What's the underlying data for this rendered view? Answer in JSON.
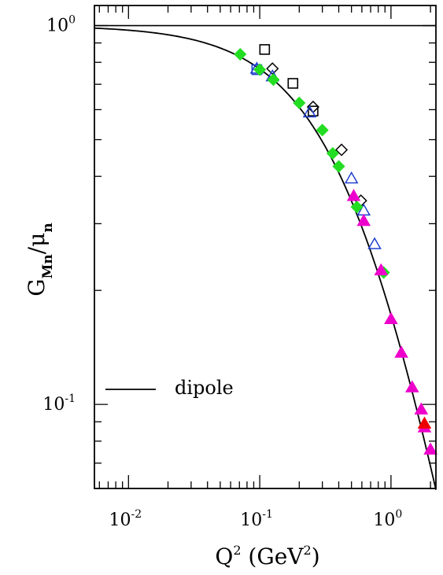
{
  "chart_data": {
    "type": "scatter",
    "title": "",
    "xlabel": "Q² (GeV²)",
    "ylabel": "G_Mn/μ_n",
    "x_scale": "log",
    "y_scale": "log",
    "xlim": [
      0.0055,
      2.2
    ],
    "ylim": [
      0.06,
      1.13
    ],
    "grid": false,
    "x_ticks": [
      {
        "base": "10",
        "exp": "-2",
        "value": 0.01
      },
      {
        "base": "10",
        "exp": "-1",
        "value": 0.1
      },
      {
        "base": "10",
        "exp": "0",
        "value": 1
      }
    ],
    "y_ticks": [
      {
        "base": "10",
        "exp": "-1",
        "value": 0.1
      },
      {
        "base": "10",
        "exp": "0",
        "value": 1
      }
    ],
    "reference_line": {
      "y": 1.0
    },
    "legend": {
      "placement": "lower-left",
      "entries": [
        {
          "label": "dipole",
          "style": "line"
        }
      ]
    },
    "dipole_curve": {
      "form": "1/(1+Q2/0.71)^2"
    },
    "series": [
      {
        "marker": "square-open",
        "color": "#000000",
        "points": [
          [
            0.109,
            0.865
          ],
          [
            0.179,
            0.704
          ],
          [
            0.255,
            0.595
          ]
        ]
      },
      {
        "marker": "diamond-open",
        "color": "#000000",
        "points": [
          [
            0.125,
            0.77
          ],
          [
            0.255,
            0.61
          ],
          [
            0.42,
            0.47
          ],
          [
            0.59,
            0.345
          ]
        ]
      },
      {
        "marker": "triangle-open",
        "color": "#2040d0",
        "points": [
          [
            0.095,
            0.77
          ],
          [
            0.125,
            0.735
          ],
          [
            0.24,
            0.59
          ],
          [
            0.5,
            0.395
          ],
          [
            0.62,
            0.325
          ],
          [
            0.75,
            0.265
          ]
        ]
      },
      {
        "marker": "square-open",
        "color": "#2040d0",
        "points": [
          [
            0.095,
            0.765
          ]
        ]
      },
      {
        "marker": "diamond-filled",
        "color": "#22dd22",
        "points": [
          [
            0.071,
            0.84
          ],
          [
            0.1,
            0.765
          ],
          [
            0.127,
            0.72
          ],
          [
            0.2,
            0.625
          ],
          [
            0.3,
            0.53
          ],
          [
            0.36,
            0.46
          ],
          [
            0.4,
            0.425
          ],
          [
            0.55,
            0.332
          ],
          [
            0.88,
            0.223
          ]
        ]
      },
      {
        "marker": "triangle-filled",
        "color": "#ee00cc",
        "points": [
          [
            0.52,
            0.355
          ],
          [
            0.62,
            0.305
          ],
          [
            0.84,
            0.226
          ],
          [
            1.0,
            0.168
          ],
          [
            1.2,
            0.137
          ],
          [
            1.45,
            0.111
          ],
          [
            1.7,
            0.097
          ],
          [
            1.8,
            0.087
          ],
          [
            2.0,
            0.076
          ]
        ]
      },
      {
        "marker": "triangle-filled",
        "color": "#ee0000",
        "points": [
          [
            1.8,
            0.089
          ]
        ]
      }
    ]
  }
}
